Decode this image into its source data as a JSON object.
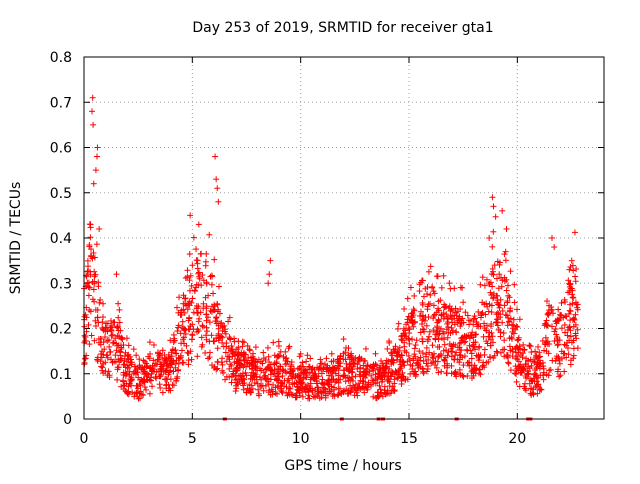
{
  "chart_data": {
    "type": "scatter",
    "title": "Day 253 of 2019, SRMTID for receiver gta1",
    "xlabel": "GPS time / hours",
    "ylabel": "SRMTID / TECUs",
    "xlim": [
      0,
      24
    ],
    "ylim": [
      0,
      0.8
    ],
    "x_ticks": [
      0,
      5,
      10,
      15,
      20
    ],
    "x_tick_labels": [
      "0",
      "5",
      "10",
      "15",
      "20"
    ],
    "y_ticks": [
      0,
      0.1,
      0.2,
      0.3,
      0.4,
      0.5,
      0.6,
      0.7,
      0.8
    ],
    "y_tick_labels": [
      "0",
      "0.1",
      "0.2",
      "0.3",
      "0.4",
      "0.5",
      "0.6",
      "0.7",
      "0.8"
    ],
    "grid": true,
    "marker": "+",
    "series_color": "#ff0000",
    "trend": [
      [
        0.0,
        0.2
      ],
      [
        0.3,
        0.3
      ],
      [
        0.7,
        0.22
      ],
      [
        1.0,
        0.15
      ],
      [
        1.5,
        0.15
      ],
      [
        2.0,
        0.1
      ],
      [
        2.5,
        0.08
      ],
      [
        3.0,
        0.1
      ],
      [
        3.5,
        0.1
      ],
      [
        4.0,
        0.1
      ],
      [
        4.5,
        0.17
      ],
      [
        5.0,
        0.24
      ],
      [
        5.5,
        0.26
      ],
      [
        6.0,
        0.2
      ],
      [
        6.5,
        0.14
      ],
      [
        7.0,
        0.11
      ],
      [
        8.0,
        0.09
      ],
      [
        9.0,
        0.1
      ],
      [
        10.0,
        0.08
      ],
      [
        11.0,
        0.08
      ],
      [
        12.0,
        0.1
      ],
      [
        13.0,
        0.09
      ],
      [
        13.8,
        0.08
      ],
      [
        14.5,
        0.12
      ],
      [
        15.0,
        0.16
      ],
      [
        15.5,
        0.18
      ],
      [
        16.0,
        0.19
      ],
      [
        17.0,
        0.17
      ],
      [
        18.0,
        0.16
      ],
      [
        18.5,
        0.18
      ],
      [
        19.0,
        0.25
      ],
      [
        19.5,
        0.23
      ],
      [
        20.0,
        0.14
      ],
      [
        20.5,
        0.09
      ],
      [
        21.0,
        0.1
      ],
      [
        21.5,
        0.18
      ],
      [
        22.0,
        0.16
      ],
      [
        22.5,
        0.22
      ],
      [
        22.8,
        0.25
      ]
    ],
    "peaks": [
      {
        "x": 0.4,
        "y": 0.71
      },
      {
        "x": 0.37,
        "y": 0.68
      },
      {
        "x": 0.42,
        "y": 0.65
      },
      {
        "x": 0.62,
        "y": 0.6
      },
      {
        "x": 0.6,
        "y": 0.58
      },
      {
        "x": 0.55,
        "y": 0.55
      },
      {
        "x": 0.45,
        "y": 0.52
      },
      {
        "x": 0.3,
        "y": 0.43
      },
      {
        "x": 0.7,
        "y": 0.42
      },
      {
        "x": 6.05,
        "y": 0.58
      },
      {
        "x": 6.1,
        "y": 0.53
      },
      {
        "x": 6.15,
        "y": 0.51
      },
      {
        "x": 6.2,
        "y": 0.48
      },
      {
        "x": 4.9,
        "y": 0.45
      },
      {
        "x": 5.3,
        "y": 0.43
      },
      {
        "x": 8.6,
        "y": 0.35
      },
      {
        "x": 8.55,
        "y": 0.32
      },
      {
        "x": 8.5,
        "y": 0.3
      },
      {
        "x": 18.85,
        "y": 0.49
      },
      {
        "x": 18.9,
        "y": 0.47
      },
      {
        "x": 19.3,
        "y": 0.46
      },
      {
        "x": 19.5,
        "y": 0.42
      },
      {
        "x": 18.7,
        "y": 0.4
      },
      {
        "x": 21.6,
        "y": 0.4
      },
      {
        "x": 21.7,
        "y": 0.38
      },
      {
        "x": 22.4,
        "y": 0.33
      },
      {
        "x": 1.5,
        "y": 0.32
      }
    ],
    "data_gaps_x": [
      6.5,
      11.9,
      13.6,
      13.8,
      17.2,
      20.5,
      20.6
    ]
  }
}
